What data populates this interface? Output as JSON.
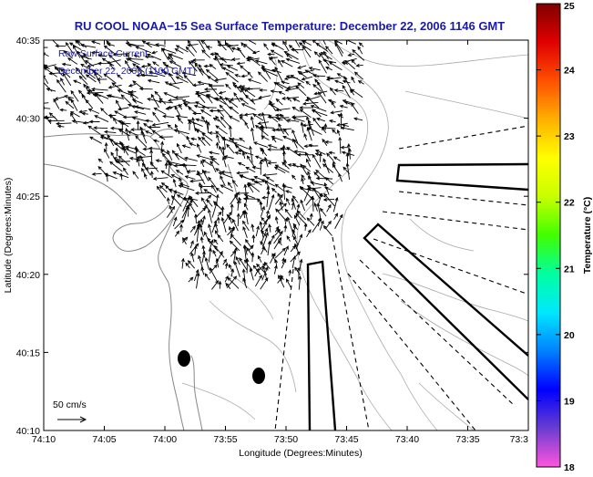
{
  "title": "RU COOL  NOAA−15  Sea Surface Temperature:  December 22, 2006 1146 GMT",
  "subtitle_1": "Raw Surface Current",
  "subtitle_2": "December 22, 2006 (1100 GMT)",
  "xlabel": "Longitude (Degrees:Minutes)",
  "ylabel": "Latitude (Degrees:Minutes)",
  "x_ticks": [
    "74:10",
    "74:05",
    "74:00",
    "73:55",
    "73:50",
    "73:45",
    "73:40",
    "73:35",
    "73:3"
  ],
  "y_ticks": [
    "40:35",
    "40:30",
    "40:25",
    "40:20",
    "40:15",
    "40:10"
  ],
  "scale_label": "50 cm/s",
  "colorbar": {
    "label": "Temperature (°C)",
    "ticks": [
      "25",
      "24",
      "23",
      "22",
      "21",
      "20",
      "19",
      "18"
    ],
    "min": 18,
    "max": 25,
    "colors": [
      "#ff55dd",
      "#6a3dd0",
      "#0000ff",
      "#0080ff",
      "#00e8ff",
      "#00ffa0",
      "#40ff00",
      "#c8ff00",
      "#ffff00",
      "#ffb000",
      "#ff5000",
      "#e00000",
      "#800000"
    ]
  },
  "map_colors": {
    "coastline": "#888888",
    "contour": "#aaaaaa",
    "arrow": "#000000",
    "frame": "#000000"
  }
}
